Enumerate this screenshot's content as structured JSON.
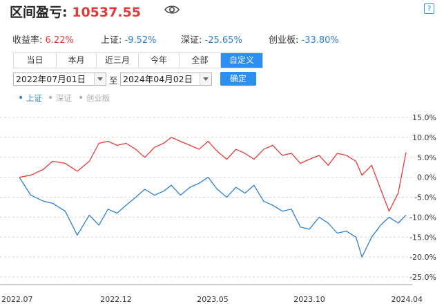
{
  "header": {
    "title": "区间盈亏:",
    "value": "10537.55",
    "eye_icon": "eye-icon",
    "help_label": "?"
  },
  "stats": [
    {
      "label": "收益率:",
      "value": "6.22%",
      "tone": "pos"
    },
    {
      "label": "上证:",
      "value": "-9.52%",
      "tone": "neg"
    },
    {
      "label": "深证:",
      "value": "-25.65%",
      "tone": "neg"
    },
    {
      "label": "创业板:",
      "value": "-33.80%",
      "tone": "neg"
    }
  ],
  "tabs": [
    {
      "label": "当日"
    },
    {
      "label": "本月"
    },
    {
      "label": "近三月"
    },
    {
      "label": "今年"
    },
    {
      "label": "全部"
    },
    {
      "label": "自定义",
      "active": true
    }
  ],
  "range": {
    "start": "2022年07月01日",
    "separator": "至",
    "end": "2024年04月02日",
    "confirm": "确定"
  },
  "legend": [
    {
      "label": "上证",
      "active": true
    },
    {
      "label": "深证",
      "active": false
    },
    {
      "label": "创业板",
      "active": false
    }
  ],
  "colors": {
    "accent": "#2a8ff0",
    "positive": "#e53935",
    "index_line": "#2a7fd4",
    "inactive": "#aaaaaa"
  },
  "chart_data": {
    "type": "line",
    "x_tick_labels": [
      "2022.07",
      "2022.12",
      "2023.05",
      "2023.10",
      "2024.04"
    ],
    "y_tick_labels": [
      "15.0%",
      "10.0%",
      "5.0%",
      "0.0%",
      "-5.0%",
      "-10.0%",
      "-15.0%",
      "-20.0%",
      "-25.0%"
    ],
    "ylim": [
      -25,
      15
    ],
    "y_unit": "%",
    "grid": "horizontal dashed",
    "series": [
      {
        "color": "#e53935",
        "x": [
          "2022-07-01",
          "2022-07-20",
          "2022-08-10",
          "2022-08-25",
          "2022-09-15",
          "2022-10-05",
          "2022-10-25",
          "2022-11-10",
          "2022-11-25",
          "2022-12-10",
          "2022-12-25",
          "2023-01-10",
          "2023-01-25",
          "2023-02-10",
          "2023-02-25",
          "2023-03-10",
          "2023-03-25",
          "2023-04-10",
          "2023-04-25",
          "2023-05-10",
          "2023-05-25",
          "2023-06-10",
          "2023-06-25",
          "2023-07-10",
          "2023-07-25",
          "2023-08-10",
          "2023-08-25",
          "2023-09-10",
          "2023-09-25",
          "2023-10-10",
          "2023-10-25",
          "2023-11-10",
          "2023-11-25",
          "2023-12-10",
          "2023-12-25",
          "2024-01-10",
          "2024-01-20",
          "2024-02-05",
          "2024-02-20",
          "2024-03-05",
          "2024-03-20",
          "2024-04-02"
        ],
        "y": [
          0.0,
          0.5,
          2.0,
          4.0,
          3.5,
          1.5,
          4.0,
          8.5,
          9.0,
          8.0,
          8.5,
          7.0,
          5.0,
          7.5,
          8.5,
          10.0,
          9.0,
          8.0,
          7.0,
          9.0,
          6.5,
          4.5,
          7.0,
          6.0,
          4.5,
          7.0,
          8.0,
          5.5,
          6.0,
          3.5,
          4.5,
          5.5,
          3.0,
          6.0,
          5.5,
          4.0,
          0.5,
          3.0,
          -3.0,
          -8.5,
          -4.0,
          6.2
        ]
      },
      {
        "name": "上证",
        "color": "#2a7fd4",
        "x": [
          "2022-07-01",
          "2022-07-20",
          "2022-08-10",
          "2022-08-25",
          "2022-09-15",
          "2022-10-05",
          "2022-10-25",
          "2022-11-10",
          "2022-11-25",
          "2022-12-10",
          "2022-12-25",
          "2023-01-10",
          "2023-01-25",
          "2023-02-10",
          "2023-02-25",
          "2023-03-10",
          "2023-03-25",
          "2023-04-10",
          "2023-04-25",
          "2023-05-10",
          "2023-05-25",
          "2023-06-10",
          "2023-06-25",
          "2023-07-10",
          "2023-07-25",
          "2023-08-10",
          "2023-08-25",
          "2023-09-10",
          "2023-09-25",
          "2023-10-10",
          "2023-10-25",
          "2023-11-10",
          "2023-11-25",
          "2023-12-10",
          "2023-12-25",
          "2024-01-10",
          "2024-01-20",
          "2024-02-05",
          "2024-02-20",
          "2024-03-05",
          "2024-03-20",
          "2024-04-02"
        ],
        "y": [
          0.0,
          -4.5,
          -6.0,
          -6.5,
          -8.5,
          -14.5,
          -9.5,
          -12.0,
          -8.0,
          -9.0,
          -7.0,
          -5.0,
          -3.0,
          -4.5,
          -3.5,
          -2.0,
          -4.5,
          -2.5,
          -1.5,
          0.0,
          -3.0,
          -5.0,
          -2.5,
          -4.0,
          -2.0,
          -6.0,
          -7.0,
          -8.5,
          -8.0,
          -12.5,
          -13.0,
          -10.0,
          -11.5,
          -14.0,
          -13.5,
          -15.0,
          -20.0,
          -15.0,
          -12.0,
          -10.0,
          -11.5,
          -9.5
        ]
      }
    ]
  }
}
